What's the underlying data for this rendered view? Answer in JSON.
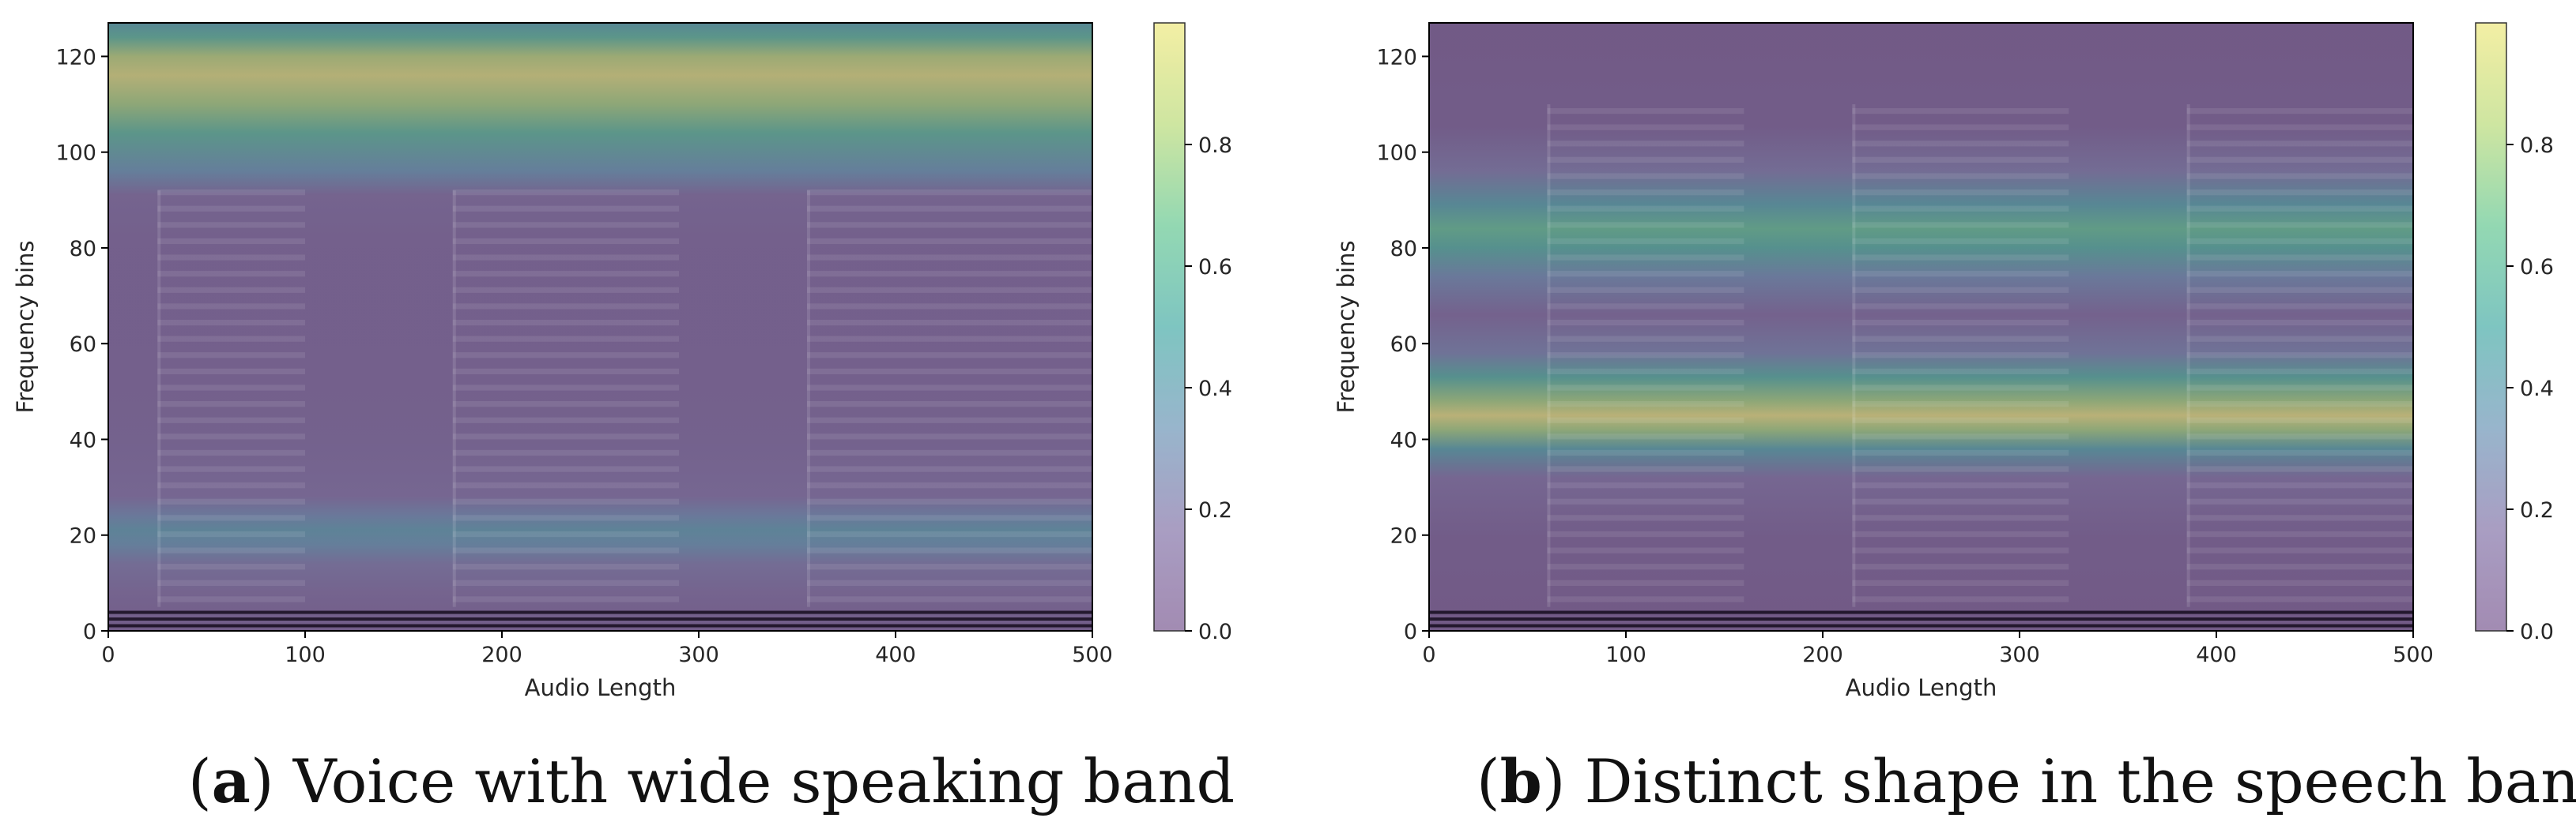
{
  "colors": {
    "background": "#ffffff",
    "plot_dark": "#2a1b3d",
    "colormap": [
      "#8c6fa0",
      "#9486b4",
      "#7fa3c0",
      "#5fb7b2",
      "#79cfa0",
      "#c3e08a",
      "#f1eb8e"
    ]
  },
  "chart_data": [
    {
      "type": "heatmap",
      "panel": "a",
      "caption_letter": "a",
      "caption_text": "Voice with wide speaking band",
      "xlabel": "Audio Length",
      "ylabel": "Frequency bins",
      "xlim": [
        0,
        500
      ],
      "ylim": [
        0,
        127
      ],
      "xticks": [
        "0",
        "100",
        "200",
        "300",
        "400",
        "500"
      ],
      "yticks": [
        "0",
        "20",
        "40",
        "60",
        "80",
        "100",
        "120"
      ],
      "colorbar": {
        "range": [
          0,
          1
        ],
        "ticks": [
          "0.0",
          "0.2",
          "0.4",
          "0.6",
          "0.8"
        ]
      },
      "attention_profile": [
        {
          "bin": 0,
          "weight": 0.05
        },
        {
          "bin": 8,
          "weight": 0.12
        },
        {
          "bin": 14,
          "weight": 0.2
        },
        {
          "bin": 18,
          "weight": 0.35
        },
        {
          "bin": 21,
          "weight": 0.4
        },
        {
          "bin": 24,
          "weight": 0.3
        },
        {
          "bin": 28,
          "weight": 0.15
        },
        {
          "bin": 40,
          "weight": 0.1
        },
        {
          "bin": 60,
          "weight": 0.08
        },
        {
          "bin": 80,
          "weight": 0.08
        },
        {
          "bin": 91,
          "weight": 0.12
        },
        {
          "bin": 96,
          "weight": 0.35
        },
        {
          "bin": 104,
          "weight": 0.6
        },
        {
          "bin": 110,
          "weight": 0.8
        },
        {
          "bin": 116,
          "weight": 0.97
        },
        {
          "bin": 120,
          "weight": 0.85
        },
        {
          "bin": 124,
          "weight": 0.6
        },
        {
          "bin": 127,
          "weight": 0.45
        }
      ],
      "speech_segments": [
        [
          25,
          100
        ],
        [
          175,
          290
        ],
        [
          355,
          500
        ]
      ],
      "harmonic_top_bin": 92
    },
    {
      "type": "heatmap",
      "panel": "b",
      "caption_letter": "b",
      "caption_text": "Distinct shape in the speech band",
      "xlabel": "Audio Length",
      "ylabel": "Frequency bins",
      "xlim": [
        0,
        500
      ],
      "ylim": [
        0,
        127
      ],
      "xticks": [
        "0",
        "100",
        "200",
        "300",
        "400",
        "500"
      ],
      "yticks": [
        "0",
        "20",
        "40",
        "60",
        "80",
        "100",
        "120"
      ],
      "colorbar": {
        "range": [
          0,
          1
        ],
        "ticks": [
          "0.0",
          "0.2",
          "0.4",
          "0.6",
          "0.8"
        ]
      },
      "attention_profile": [
        {
          "bin": 0,
          "weight": 0.02
        },
        {
          "bin": 20,
          "weight": 0.05
        },
        {
          "bin": 32,
          "weight": 0.15
        },
        {
          "bin": 38,
          "weight": 0.45
        },
        {
          "bin": 42,
          "weight": 0.8
        },
        {
          "bin": 45,
          "weight": 1.0
        },
        {
          "bin": 48,
          "weight": 0.8
        },
        {
          "bin": 53,
          "weight": 0.55
        },
        {
          "bin": 58,
          "weight": 0.25
        },
        {
          "bin": 66,
          "weight": 0.1
        },
        {
          "bin": 74,
          "weight": 0.3
        },
        {
          "bin": 80,
          "weight": 0.55
        },
        {
          "bin": 84,
          "weight": 0.65
        },
        {
          "bin": 89,
          "weight": 0.45
        },
        {
          "bin": 96,
          "weight": 0.2
        },
        {
          "bin": 105,
          "weight": 0.05
        },
        {
          "bin": 127,
          "weight": 0.02
        }
      ],
      "speech_segments": [
        [
          60,
          160
        ],
        [
          215,
          325
        ],
        [
          385,
          500
        ]
      ],
      "harmonic_top_bin": 110
    }
  ]
}
